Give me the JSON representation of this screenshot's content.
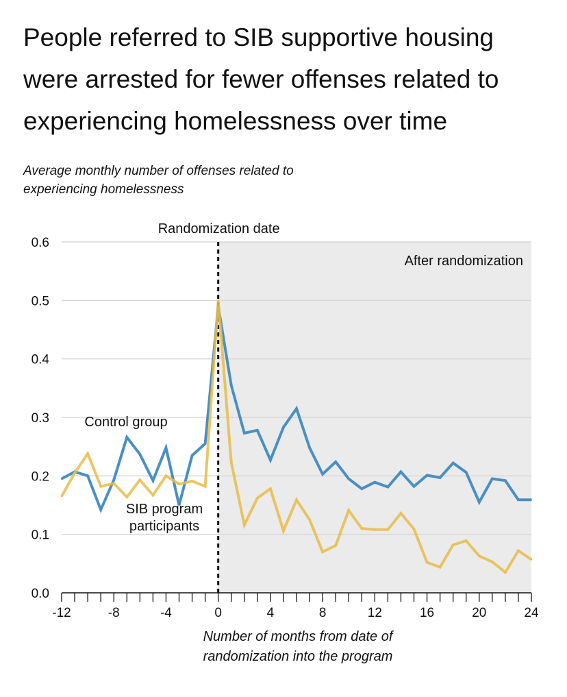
{
  "title": "People referred to SIB supportive housing were arrested for fewer offenses related to experiencing homelessness over time",
  "chart_data": {
    "type": "line",
    "title": "People referred to SIB supportive housing were arrested for fewer offenses related to experiencing homelessness over time",
    "ylabel": "Average monthly number of offenses related to experiencing homelessness",
    "xlabel": "Number of months from date of randomization into the program",
    "xlim": [
      -12,
      24
    ],
    "ylim": [
      0,
      0.6
    ],
    "x": [
      -12,
      -11,
      -10,
      -9,
      -8,
      -7,
      -6,
      -5,
      -4,
      -3,
      -2,
      -1,
      0,
      1,
      2,
      3,
      4,
      5,
      6,
      7,
      8,
      9,
      10,
      11,
      12,
      13,
      14,
      15,
      16,
      17,
      18,
      19,
      20,
      21,
      22,
      23,
      24
    ],
    "xtick_labels": [
      "-12",
      "-8",
      "-4",
      "0",
      "4",
      "8",
      "12",
      "16",
      "20",
      "24"
    ],
    "xtick_values": [
      -12,
      -8,
      -4,
      0,
      4,
      8,
      12,
      16,
      20,
      24
    ],
    "ytick_labels": [
      "0.0",
      "0.1",
      "0.2",
      "0.3",
      "0.4",
      "0.5",
      "0.6"
    ],
    "ytick_values": [
      0,
      0.1,
      0.2,
      0.3,
      0.4,
      0.5,
      0.6
    ],
    "grid": true,
    "series": [
      {
        "name": "Control group",
        "color": "#4a8fc2",
        "values": [
          0.195,
          0.207,
          0.2,
          0.142,
          0.193,
          0.266,
          0.237,
          0.192,
          0.248,
          0.15,
          0.235,
          0.255,
          0.49,
          0.355,
          0.273,
          0.278,
          0.227,
          0.283,
          0.315,
          0.248,
          0.203,
          0.224,
          0.195,
          0.178,
          0.189,
          0.181,
          0.207,
          0.182,
          0.201,
          0.197,
          0.222,
          0.206,
          0.155,
          0.195,
          0.192,
          0.159,
          0.159
        ]
      },
      {
        "name": "SIB program participants",
        "color": "#e8bc4a",
        "values": [
          0.165,
          0.205,
          0.238,
          0.182,
          0.187,
          0.164,
          0.193,
          0.167,
          0.2,
          0.186,
          0.191,
          0.182,
          0.5,
          0.223,
          0.116,
          0.162,
          0.178,
          0.106,
          0.159,
          0.125,
          0.07,
          0.081,
          0.141,
          0.11,
          0.108,
          0.108,
          0.136,
          0.109,
          0.052,
          0.044,
          0.082,
          0.089,
          0.063,
          0.053,
          0.035,
          0.072,
          0.057
        ]
      }
    ],
    "annotations": {
      "randomization": "Randomization date",
      "after": "After randomization",
      "control_label": "Control group",
      "sib_label_line1": "SIB program",
      "sib_label_line2": "participants"
    }
  }
}
